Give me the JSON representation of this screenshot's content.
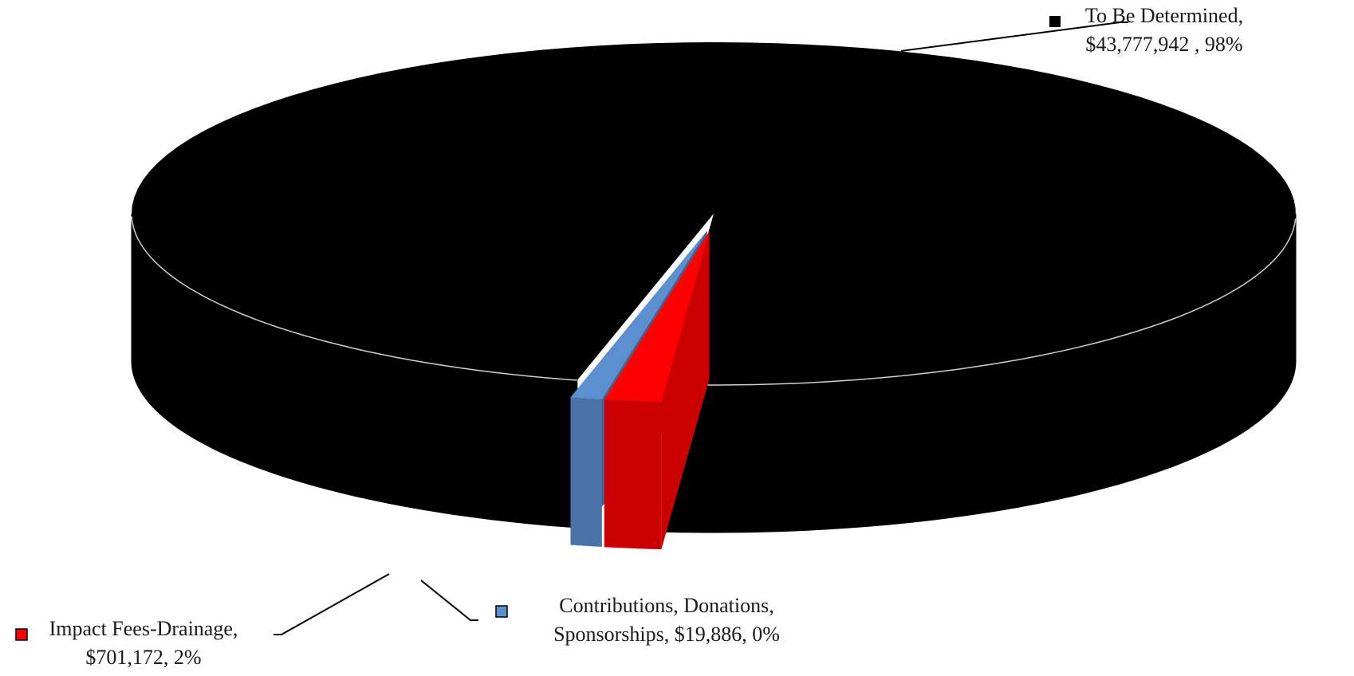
{
  "chart_data": {
    "type": "pie",
    "style": "3d-exploded",
    "slices": [
      {
        "category": "To Be Determined",
        "value": 43777942,
        "value_label": "$43,777,942",
        "percent_label": "98%",
        "label_lines": [
          "To Be Determined,",
          "$43,777,942 , 98%"
        ],
        "color": "#000000"
      },
      {
        "category": "Impact Fees-Drainage",
        "value": 701172,
        "value_label": "$701,172",
        "percent_label": "2%",
        "label_lines": [
          "Impact Fees-Drainage,",
          "$701,172, 2%"
        ],
        "color": "#ff0000"
      },
      {
        "category": "Contributions, Donations, Sponsorships",
        "value": 19886,
        "value_label": "$19,886",
        "percent_label": "0%",
        "label_lines": [
          "Contributions, Donations,",
          "Sponsorships,  $19,886, 0%"
        ],
        "color": "#5b8fd0"
      }
    ],
    "legend_keys": true,
    "title": ""
  }
}
